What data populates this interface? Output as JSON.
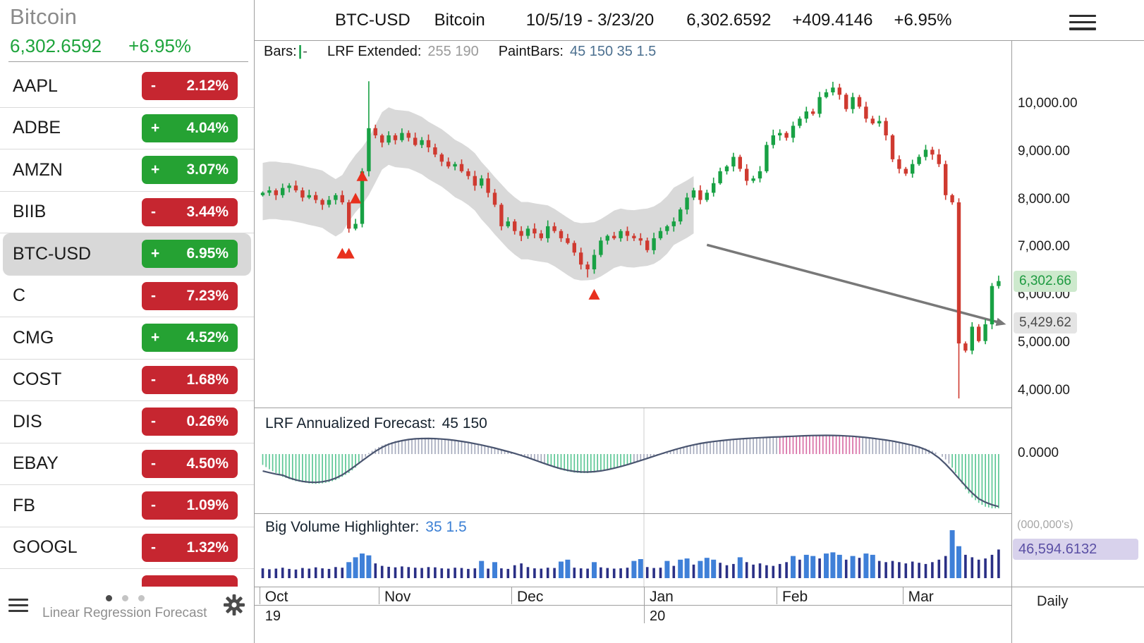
{
  "sidebar": {
    "title": "Bitcoin",
    "price": "6,302.6592",
    "change_pct": "+6.95%",
    "watchlist": [
      {
        "symbol": "AAPL",
        "sign": "-",
        "pct": "2.12%",
        "dir": "down",
        "selected": false
      },
      {
        "symbol": "ADBE",
        "sign": "+",
        "pct": "4.04%",
        "dir": "up",
        "selected": false
      },
      {
        "symbol": "AMZN",
        "sign": "+",
        "pct": "3.07%",
        "dir": "up",
        "selected": false
      },
      {
        "symbol": "BIIB",
        "sign": "-",
        "pct": "3.44%",
        "dir": "down",
        "selected": false
      },
      {
        "symbol": "BTC-USD",
        "sign": "+",
        "pct": "6.95%",
        "dir": "up",
        "selected": true
      },
      {
        "symbol": "C",
        "sign": "-",
        "pct": "7.23%",
        "dir": "down",
        "selected": false
      },
      {
        "symbol": "CMG",
        "sign": "+",
        "pct": "4.52%",
        "dir": "up",
        "selected": false
      },
      {
        "symbol": "COST",
        "sign": "-",
        "pct": "1.68%",
        "dir": "down",
        "selected": false
      },
      {
        "symbol": "DIS",
        "sign": "-",
        "pct": "0.26%",
        "dir": "down",
        "selected": false
      },
      {
        "symbol": "EBAY",
        "sign": "-",
        "pct": "4.50%",
        "dir": "down",
        "selected": false
      },
      {
        "symbol": "FB",
        "sign": "-",
        "pct": "1.09%",
        "dir": "down",
        "selected": false
      },
      {
        "symbol": "GOOGL",
        "sign": "-",
        "pct": "1.32%",
        "dir": "down",
        "selected": false
      },
      {
        "symbol": "",
        "sign": "",
        "pct": "",
        "dir": "down",
        "selected": false
      }
    ],
    "footer": {
      "label": "Linear Regression Forecast"
    }
  },
  "header": {
    "symbol": "BTC-USD",
    "name": "Bitcoin",
    "date_range": "10/5/19 - 3/23/20",
    "price": "6,302.6592",
    "change_abs": "+409.4146",
    "change_pct": "+6.95%"
  },
  "price_panel": {
    "indicator_bar": {
      "bars_label": "Bars:",
      "bars_pipe": "|",
      "bars_dash": "-",
      "lrf_label": "LRF Extended:",
      "lrf_params": "255 190",
      "pb_label": "PaintBars:",
      "pb_params": "45 150 35 1.5"
    },
    "axis_labels": [
      "10,000.00",
      "9,000.00",
      "8,000.00",
      "7,000.00",
      "6,000.00",
      "5,000.00",
      "4,000.00"
    ],
    "last_price_label": "6,302.66",
    "forecast_price_label": "5,429.62"
  },
  "oscillator_panel": {
    "label": "LRF Annualized Forecast:",
    "params": "45 150",
    "axis_label": "0.0000"
  },
  "volume_panel": {
    "label": "Big Volume Highlighter:",
    "params": "35 1.5",
    "units_label": "(000,000's)",
    "current_label": "46,594.6132"
  },
  "time_axis": {
    "months": [
      {
        "label": "Oct",
        "index": 0
      },
      {
        "label": "Nov",
        "index": 18
      },
      {
        "label": "Dec",
        "index": 38
      },
      {
        "label": "Jan",
        "index": 58
      },
      {
        "label": "Feb",
        "index": 78
      },
      {
        "label": "Mar",
        "index": 97
      }
    ],
    "years": [
      {
        "label": "19",
        "index": 0
      },
      {
        "label": "20",
        "index": 58
      }
    ],
    "interval": "Daily"
  },
  "colors": {
    "up": "#18a144",
    "down": "#cf3a30",
    "band": "#d9d9d9",
    "trend": "#787878",
    "signal": "#e8301d",
    "osc_pink": "#d86ea6",
    "osc_green": "#5cc795",
    "osc_gray": "#a6abbd",
    "vol_normal": "#2a2f85",
    "vol_big": "#3f80d8",
    "accent_green": "#1ea43c"
  },
  "chart_data": [
    {
      "type": "candlestick",
      "title": "BTC-USD Bitcoin",
      "timeframe": "Daily",
      "x_range": [
        "10/5/19",
        "3/23/20"
      ],
      "ylim": [
        3660,
        11340
      ],
      "y_ticks": [
        10000,
        9000,
        8000,
        7000,
        6000,
        5000,
        4000
      ],
      "open_first": 8100,
      "closes": [
        8150,
        8200,
        8100,
        8250,
        8300,
        8200,
        8050,
        8100,
        8000,
        7900,
        8000,
        8100,
        7950,
        7400,
        7500,
        8600,
        9500,
        9350,
        9200,
        9350,
        9250,
        9400,
        9300,
        9150,
        9250,
        9100,
        8950,
        8800,
        8700,
        8750,
        8600,
        8500,
        8300,
        8450,
        8150,
        7900,
        7450,
        7550,
        7350,
        7250,
        7400,
        7300,
        7200,
        7450,
        7350,
        7200,
        7100,
        6900,
        6650,
        6550,
        6850,
        7150,
        7250,
        7200,
        7350,
        7250,
        7200,
        7150,
        6950,
        7200,
        7350,
        7450,
        7550,
        7800,
        8050,
        8200,
        8000,
        8150,
        8350,
        8600,
        8700,
        8900,
        8650,
        8400,
        8450,
        8600,
        9150,
        9350,
        9400,
        9300,
        9550,
        9700,
        9850,
        9800,
        10150,
        10250,
        10350,
        10200,
        9900,
        10150,
        9950,
        9700,
        9600,
        9650,
        9350,
        8850,
        8650,
        8550,
        8750,
        8900,
        9050,
        8950,
        8750,
        8100,
        7950,
        5000,
        4850,
        5350,
        5050,
        5400,
        6200,
        6302.66
      ],
      "wick_overrides": [
        {
          "i": 16,
          "high": 10480
        },
        {
          "i": 49,
          "low": 6380
        },
        {
          "i": 105,
          "low": 3850
        }
      ],
      "band": {
        "name": "LRF Extended",
        "params": "255 190",
        "end_index": 65,
        "half_width": 600
      },
      "trend_line": {
        "name": "LRF projection",
        "from_index": 67,
        "from_price": 7060,
        "to_index": 111,
        "to_price": 5440
      },
      "signals": {
        "name": "PaintBars",
        "params": "45 150 35 1.5",
        "points": [
          {
            "i": 12,
            "price": 6880
          },
          {
            "i": 13,
            "price": 6880
          },
          {
            "i": 14,
            "price": 8030
          },
          {
            "i": 15,
            "price": 8500
          },
          {
            "i": 50,
            "price": 6020
          }
        ]
      },
      "last_price": 6302.66,
      "forecast_price": 5429.62
    },
    {
      "type": "oscillator",
      "title": "LRF Annualized Forecast",
      "params": "45 150",
      "zero_label": "0.0000",
      "ylim": [
        -1.1,
        0.45
      ],
      "pink_threshold": 0.32,
      "green_threshold": -0.18,
      "values": [
        -0.2,
        -0.28,
        -0.35,
        -0.42,
        -0.46,
        -0.5,
        -0.52,
        -0.54,
        -0.55,
        -0.54,
        -0.52,
        -0.48,
        -0.42,
        -0.35,
        -0.25,
        -0.12,
        0.02,
        0.1,
        0.16,
        0.2,
        0.24,
        0.26,
        0.28,
        0.29,
        0.3,
        0.3,
        0.29,
        0.28,
        0.27,
        0.26,
        0.24,
        0.22,
        0.2,
        0.17,
        0.14,
        0.11,
        0.08,
        0.05,
        0.02,
        -0.02,
        -0.06,
        -0.1,
        -0.15,
        -0.2,
        -0.25,
        -0.29,
        -0.32,
        -0.34,
        -0.35,
        -0.35,
        -0.34,
        -0.32,
        -0.3,
        -0.27,
        -0.24,
        -0.2,
        -0.16,
        -0.12,
        -0.08,
        -0.04,
        0.0,
        0.04,
        0.08,
        0.12,
        0.15,
        0.18,
        0.2,
        0.22,
        0.24,
        0.25,
        0.26,
        0.27,
        0.28,
        0.29,
        0.3,
        0.3,
        0.31,
        0.31,
        0.32,
        0.32,
        0.33,
        0.33,
        0.34,
        0.34,
        0.35,
        0.35,
        0.35,
        0.34,
        0.34,
        0.33,
        0.32,
        0.31,
        0.3,
        0.28,
        0.26,
        0.24,
        0.22,
        0.2,
        0.17,
        0.14,
        0.1,
        0.06,
        0.0,
        -0.1,
        -0.25,
        -0.45,
        -0.65,
        -0.8,
        -0.9,
        -0.97,
        -1.0,
        -1.0
      ]
    },
    {
      "type": "bar",
      "title": "Big Volume Highlighter",
      "params": "35 1.5",
      "units": "(000,000's)",
      "current": 46594.6132,
      "values": [
        16000,
        14500,
        15500,
        17000,
        15000,
        14000,
        16500,
        15500,
        17500,
        16000,
        15000,
        18000,
        17000,
        26000,
        34000,
        40000,
        37000,
        24000,
        20000,
        18500,
        17500,
        19000,
        18000,
        17000,
        16500,
        18000,
        17500,
        16000,
        15500,
        17000,
        16500,
        15000,
        16000,
        28000,
        15500,
        26000,
        16000,
        15000,
        21000,
        24000,
        18000,
        16000,
        15500,
        17000,
        16500,
        27000,
        30000,
        17000,
        16000,
        15500,
        26000,
        17500,
        16500,
        15500,
        16000,
        17000,
        28000,
        31000,
        18000,
        16500,
        17000,
        28000,
        20000,
        30000,
        32000,
        22000,
        28000,
        33000,
        30000,
        25000,
        21000,
        23000,
        34000,
        26000,
        22000,
        24000,
        21000,
        20000,
        23000,
        26000,
        36000,
        30000,
        38000,
        36000,
        32000,
        40000,
        42000,
        38000,
        30000,
        36000,
        33000,
        40000,
        38000,
        28000,
        26000,
        28000,
        26000,
        24000,
        27000,
        25000,
        23000,
        26000,
        30000,
        36000,
        78000,
        52000,
        38000,
        34000,
        30000,
        32000,
        38000,
        46594.6132
      ],
      "highlight_indices": [
        13,
        14,
        15,
        16,
        33,
        35,
        45,
        46,
        50,
        56,
        57,
        61,
        63,
        64,
        66,
        67,
        68,
        72,
        80,
        82,
        83,
        85,
        86,
        87,
        89,
        91,
        92,
        104,
        105
      ]
    }
  ]
}
